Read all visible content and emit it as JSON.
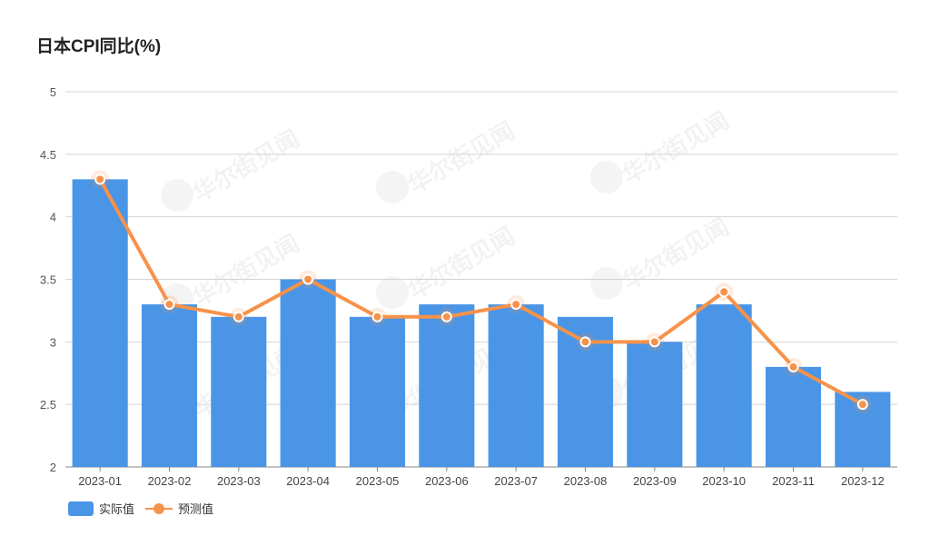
{
  "chart_data": {
    "type": "bar+line",
    "title": "日本CPI同比(%)",
    "categories": [
      "2023-01",
      "2023-02",
      "2023-03",
      "2023-04",
      "2023-05",
      "2023-06",
      "2023-07",
      "2023-08",
      "2023-09",
      "2023-10",
      "2023-11",
      "2023-12"
    ],
    "series": [
      {
        "name": "实际值",
        "type": "bar",
        "color": "#4a95e6",
        "values": [
          4.3,
          3.3,
          3.2,
          3.5,
          3.2,
          3.3,
          3.3,
          3.2,
          3.0,
          3.3,
          2.8,
          2.6
        ]
      },
      {
        "name": "预测值",
        "type": "line",
        "color": "#f7924a",
        "values": [
          4.3,
          3.3,
          3.2,
          3.5,
          3.2,
          3.2,
          3.3,
          3.0,
          3.0,
          3.4,
          2.8,
          2.5
        ]
      }
    ],
    "ylim": [
      2,
      5
    ],
    "yticks": [
      2,
      2.5,
      3,
      3.5,
      4,
      4.5,
      5
    ],
    "ytick_labels": [
      "2",
      "2.5",
      "3",
      "3.5",
      "4",
      "4.5",
      "5"
    ],
    "grid": true,
    "legend_position": "bottom-left",
    "watermark": "华尔街见闻"
  }
}
